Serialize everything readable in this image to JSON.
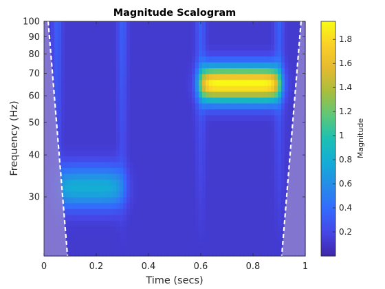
{
  "chart_data": {
    "type": "heatmap",
    "title": "Magnitude Scalogram",
    "xlabel": "Time (secs)",
    "ylabel": "Frequency (Hz)",
    "xlim": [
      0,
      1
    ],
    "ylim": [
      20,
      100
    ],
    "yscale": "log",
    "x_ticks": [
      0,
      0.2,
      0.4,
      0.6,
      0.8,
      1
    ],
    "x_tick_labels": [
      "0",
      "0.2",
      "0.4",
      "0.6",
      "0.8",
      "1"
    ],
    "y_ticks": [
      30,
      40,
      50,
      60,
      70,
      80,
      90,
      100
    ],
    "y_tick_labels": [
      "30",
      "40",
      "50",
      "60",
      "70",
      "80",
      "90",
      "100"
    ],
    "colormap": "parula",
    "colorbar": {
      "label": "Magnitude",
      "range": [
        0,
        1.95
      ],
      "ticks": [
        0.2,
        0.4,
        0.6,
        0.8,
        1,
        1.2,
        1.4,
        1.6,
        1.8
      ],
      "tick_labels": [
        "0.2",
        "0.4",
        "0.6",
        "0.8",
        "1",
        "1.2",
        "1.4",
        "1.6",
        "1.8"
      ],
      "placement": "right"
    },
    "components": [
      {
        "name": "low-frequency burst",
        "time_range": [
          0.05,
          0.3
        ],
        "center_time": 0.18,
        "center_frequency": 32,
        "peak_magnitude": 0.8
      },
      {
        "name": "high-frequency burst",
        "time_range": [
          0.6,
          0.9
        ],
        "center_time": 0.7,
        "center_frequency": 65,
        "peak_magnitude": 1.95
      }
    ],
    "cone_of_influence": {
      "style": "white dashed",
      "left": [
        [
          0.016,
          100
        ],
        [
          0.09,
          20
        ]
      ],
      "right": [
        [
          0.984,
          100
        ],
        [
          0.91,
          20
        ]
      ],
      "shaded_color": "#8a7dd0"
    },
    "colors": {
      "background_low": "#3e26a8",
      "peak": "#f9fb15"
    }
  }
}
